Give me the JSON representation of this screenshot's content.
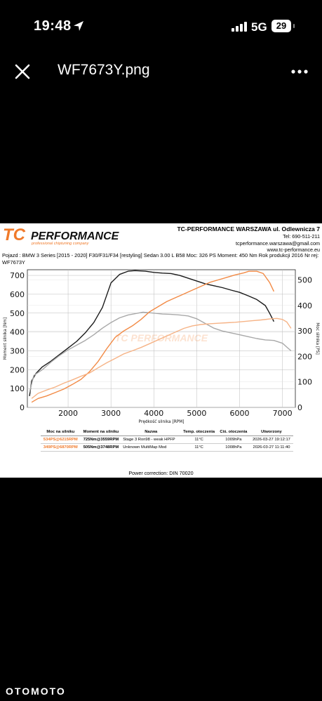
{
  "status_bar": {
    "time": "19:48",
    "network": "5G",
    "battery": "29"
  },
  "toolbar": {
    "file_name": "WF7673Y.png"
  },
  "document": {
    "logo_text": "TC PERFORMANCE",
    "logo_sub": "professional chiptuning company",
    "company_name": "TC-PERFORMANCE WARSZAWA ul. Odlewnicza 7",
    "phone": "Tel: 690-511-211",
    "email": "tcperformance.warszawa@gmail.com",
    "website": "www.tc-performance.eu",
    "vehicle_info": "Pojazd : BMW 3 Series [2015 - 2020] F30/F31/F34 [restyling] Sedan 3.00 L B58 Moc: 326 PS Moment: 450 Nm Rok produkcji 2016 Nr rej: WF7673Y",
    "table": {
      "headers": [
        "Moc na silniku",
        "Moment na silniku",
        "Nazwa",
        "Temp. otoczenia",
        "Ciś. otoczenia",
        "Utworzony"
      ],
      "rows": [
        [
          "534PS@6215RPM",
          "725Nm@3559RPM",
          "Stage 3 Ron98 - weak HPFP",
          "11°C",
          "1009hPa",
          "2026-03-27 19:12:17"
        ],
        [
          "349PS@6870RPM",
          "505Nm@3748RPM",
          "Unknown MultiMap Mod",
          "11°C",
          "1008hPa",
          "2026-03-27 11:11:40"
        ]
      ]
    },
    "power_correction": "Power correction: DIN 70020"
  },
  "chart_data": {
    "type": "line",
    "xlabel": "Prędkość silnika [RPM]",
    "ylabel": "Moment silnika [Nm]",
    "y2label": "Moc silnika [PS]",
    "watermark": "TC PERFORMANCE",
    "xlim": [
      1050,
      7300
    ],
    "ylim": [
      0,
      730
    ],
    "y2lim": [
      0,
      540
    ],
    "xticks": [
      2000,
      3000,
      4000,
      5000,
      6000,
      7000
    ],
    "yticks": [
      0,
      100,
      200,
      300,
      400,
      500,
      600,
      700
    ],
    "y2ticks": [
      0,
      100,
      200,
      300,
      400,
      500
    ],
    "series": [
      {
        "name": "Moment - Stage 3 Ron98 - weak HPFP",
        "axis": "left",
        "color": "#1a1a1a",
        "x": [
          1100,
          1150,
          1250,
          1400,
          1600,
          1800,
          2000,
          2200,
          2400,
          2600,
          2800,
          3000,
          3200,
          3400,
          3559,
          3800,
          4000,
          4200,
          4400,
          4600,
          4800,
          5000,
          5200,
          5400,
          5600,
          5800,
          6000,
          6200,
          6400,
          6600,
          6700,
          6800
        ],
        "y": [
          60,
          140,
          180,
          215,
          245,
          280,
          315,
          350,
          395,
          450,
          530,
          660,
          705,
          722,
          725,
          722,
          716,
          712,
          710,
          700,
          685,
          670,
          655,
          645,
          635,
          622,
          610,
          592,
          572,
          540,
          500,
          455
        ]
      },
      {
        "name": "Moment - Unknown MultiMap Mod",
        "axis": "left",
        "color": "#a8a8a8",
        "x": [
          1100,
          1200,
          1400,
          1600,
          1800,
          2000,
          2200,
          2400,
          2600,
          2800,
          3000,
          3200,
          3400,
          3748,
          4000,
          4200,
          4400,
          4600,
          4800,
          5000,
          5200,
          5400,
          5600,
          5800,
          6000,
          6200,
          6400,
          6600,
          6800,
          7000,
          7100,
          7200
        ],
        "y": [
          80,
          170,
          200,
          240,
          275,
          305,
          330,
          355,
          385,
          420,
          450,
          475,
          490,
          505,
          500,
          495,
          493,
          490,
          485,
          470,
          445,
          420,
          405,
          395,
          385,
          375,
          365,
          358,
          355,
          340,
          320,
          300
        ]
      },
      {
        "name": "Moc - Stage 3 Ron98 - weak HPFP",
        "axis": "right",
        "color": "#f28a45",
        "x": [
          1150,
          1300,
          1500,
          1700,
          1900,
          2100,
          2300,
          2500,
          2700,
          2900,
          3100,
          3300,
          3500,
          3700,
          3900,
          4100,
          4300,
          4500,
          4700,
          4900,
          5100,
          5300,
          5500,
          5700,
          5900,
          6100,
          6215,
          6400,
          6550,
          6700,
          6800
        ],
        "y": [
          20,
          35,
          45,
          58,
          72,
          90,
          110,
          140,
          180,
          230,
          275,
          300,
          320,
          345,
          375,
          395,
          415,
          430,
          445,
          460,
          475,
          490,
          500,
          510,
          520,
          528,
          534,
          534,
          525,
          490,
          455
        ]
      },
      {
        "name": "Moc - Unknown MultiMap Mod",
        "axis": "right",
        "color": "#f6b386",
        "x": [
          1150,
          1300,
          1500,
          1700,
          1900,
          2100,
          2300,
          2500,
          2700,
          2900,
          3100,
          3300,
          3500,
          3700,
          3900,
          4100,
          4300,
          4500,
          4700,
          4900,
          5100,
          5300,
          5500,
          5700,
          5900,
          6100,
          6300,
          6500,
          6700,
          6870,
          7000,
          7100,
          7200
        ],
        "y": [
          35,
          55,
          68,
          80,
          95,
          108,
          122,
          135,
          155,
          175,
          192,
          210,
          222,
          235,
          250,
          265,
          280,
          295,
          310,
          320,
          325,
          328,
          330,
          332,
          334,
          337,
          340,
          343,
          347,
          349,
          345,
          335,
          310
        ]
      }
    ]
  }
}
